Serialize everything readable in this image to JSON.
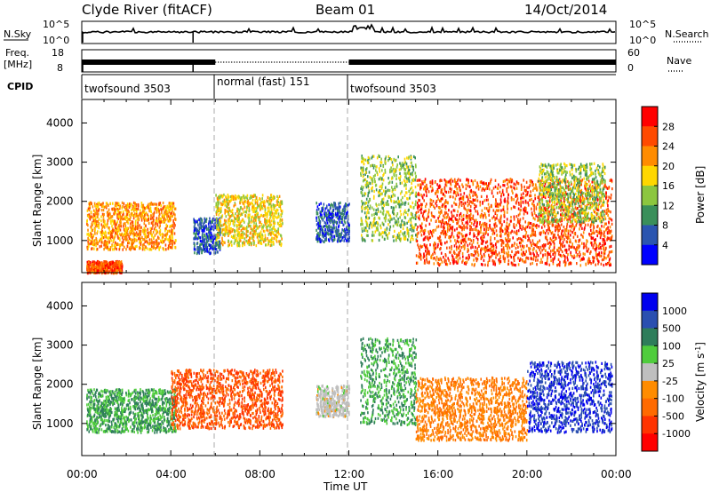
{
  "header": {
    "station": "Clyde River (fitACF)",
    "beam": "Beam 01",
    "date": "14/Oct/2014"
  },
  "noise_panel": {
    "left_label": "N.Sky",
    "right_label": "N.Search",
    "left_ticks": [
      "10^5",
      "10^0"
    ],
    "right_ticks": [
      "10^5",
      "10^0"
    ]
  },
  "freq_panel": {
    "left_label_1": "Freq.",
    "left_label_2": "[MHz]",
    "right_label": "Nave",
    "left_ticks": [
      "18",
      "8"
    ],
    "right_ticks": [
      "60",
      "0"
    ]
  },
  "cpid": {
    "label": "CPID",
    "segments": [
      {
        "name": "twofsound 3503",
        "start_hour": 0,
        "end_hour": 6
      },
      {
        "name": "normal (fast) 151",
        "start_hour": 6,
        "end_hour": 12
      },
      {
        "name": "twofsound 3503",
        "start_hour": 12,
        "end_hour": 24
      }
    ]
  },
  "colorbars": {
    "power": {
      "label": "Power [dB]",
      "ticks": [
        "28",
        "24",
        "20",
        "16",
        "12",
        "8",
        "4"
      ],
      "colors": [
        "#ff0000",
        "#ff4a00",
        "#ff8c00",
        "#ffd700",
        "#8cc63f",
        "#3a8f5a",
        "#2b55b0",
        "#0000ff"
      ]
    },
    "velocity": {
      "label": "Velocity [m s",
      "label_sup": "-1",
      "label_end": "]",
      "ticks": [
        "1000",
        "500",
        "100",
        "25",
        "-25",
        "-100",
        "-500",
        "-1000"
      ],
      "colors": [
        "#0000ee",
        "#2a4fb0",
        "#2e7d5a",
        "#4fcc3c",
        "#bfbfbf",
        "#ff8c00",
        "#ff6a00",
        "#ff3300",
        "#ff0000"
      ]
    }
  },
  "axes": {
    "ylabel": "Slant Range [km]",
    "xlabel": "Time UT",
    "y_ticks": [
      1000,
      2000,
      3000,
      4000
    ],
    "x_ticks": [
      "00:00",
      "04:00",
      "08:00",
      "12:00",
      "16:00",
      "20:00",
      "00:00"
    ]
  },
  "chart_data": {
    "type": "heatmap",
    "title": "Clyde River (fitACF) Beam 01 14/Oct/2014",
    "x_range_hours": [
      0,
      24
    ],
    "y_range_km": [
      180,
      4600
    ],
    "xlabel": "Time UT",
    "ylabel": "Slant Range [km]",
    "panels": [
      {
        "name": "Power",
        "unit": "dB",
        "scatter_regions": [
          {
            "t0": 0.2,
            "t1": 4.2,
            "r0": 800,
            "r1": 2000,
            "value": 24
          },
          {
            "t0": 0.2,
            "t1": 1.8,
            "r0": 200,
            "r1": 500,
            "value": 28
          },
          {
            "t0": 5.0,
            "t1": 6.2,
            "r0": 700,
            "r1": 1600,
            "value": 8
          },
          {
            "t0": 6.0,
            "t1": 9.0,
            "r0": 900,
            "r1": 2200,
            "value": 20
          },
          {
            "t0": 10.5,
            "t1": 12.0,
            "r0": 1000,
            "r1": 2000,
            "value": 8
          },
          {
            "t0": 12.5,
            "t1": 15.0,
            "r0": 1000,
            "r1": 3200,
            "value": 16
          },
          {
            "t0": 15.0,
            "t1": 23.8,
            "r0": 400,
            "r1": 2600,
            "value": 28
          },
          {
            "t0": 20.5,
            "t1": 23.5,
            "r0": 1500,
            "r1": 3000,
            "value": 16
          }
        ]
      },
      {
        "name": "Velocity",
        "unit": "m s-1",
        "scatter_regions": [
          {
            "t0": 0.2,
            "t1": 4.2,
            "r0": 800,
            "r1": 1900,
            "value": 100
          },
          {
            "t0": 4.0,
            "t1": 9.0,
            "r0": 900,
            "r1": 2400,
            "value": -500
          },
          {
            "t0": 10.5,
            "t1": 12.0,
            "r0": 1200,
            "r1": 2000,
            "value": 0
          },
          {
            "t0": 12.5,
            "t1": 15.0,
            "r0": 1000,
            "r1": 3200,
            "value": 100
          },
          {
            "t0": 15.0,
            "t1": 20.0,
            "r0": 600,
            "r1": 2200,
            "value": -100
          },
          {
            "t0": 20.0,
            "t1": 23.8,
            "r0": 800,
            "r1": 2600,
            "value": 1000
          }
        ]
      }
    ]
  }
}
